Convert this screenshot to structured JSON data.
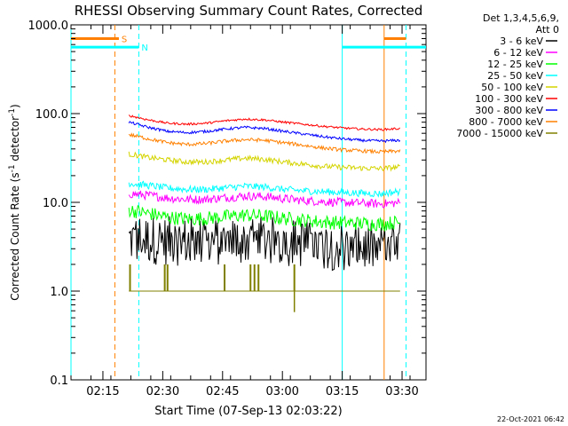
{
  "chart_data": {
    "type": "line",
    "title": "RHESSI Observing Summary Count Rates, Corrected",
    "xlabel": "Start Time (07-Sep-13 02:03:22)",
    "ylabel_main": "Corrected Count Rate (s",
    "ylabel_sup1": "-1",
    "ylabel_mid": " detector",
    "ylabel_sup2": "-1",
    "ylabel_end": ")",
    "yscale": "log",
    "ylim": [
      0.1,
      1000
    ],
    "y_ticks": [
      {
        "value": 1000,
        "label": "1000.0"
      },
      {
        "value": 100,
        "label": "100.0"
      },
      {
        "value": 10,
        "label": "10.0"
      },
      {
        "value": 1,
        "label": "1.0"
      },
      {
        "value": 0.1,
        "label": "0.1"
      }
    ],
    "xlim_min": [
      7,
      96
    ],
    "x_ticks": [
      {
        "min": 15,
        "label": "02:15"
      },
      {
        "min": 30,
        "label": "02:30"
      },
      {
        "min": 45,
        "label": "02:45"
      },
      {
        "min": 60,
        "label": "03:00"
      },
      {
        "min": 75,
        "label": "03:15"
      },
      {
        "min": 90,
        "label": "03:30"
      }
    ],
    "data_start_min": 21.5,
    "data_end_min": 89.5,
    "legend_header": [
      "Det 1,3,4,5,6,9,",
      "Att 0"
    ],
    "series": [
      {
        "name": "3 - 6 keV",
        "color": "#000000",
        "profile": [
          3.8,
          3.8,
          3.7,
          3.6,
          3.6,
          3.6,
          3.7,
          3.7,
          3.6,
          3.5,
          3.3,
          3.2,
          3.1,
          3.1,
          3.2
        ],
        "noise": 0.28,
        "spike": 0.25
      },
      {
        "name": "6 - 12 keV",
        "color": "#ff00ff",
        "profile": [
          12.5,
          12.0,
          11.2,
          10.8,
          10.8,
          11.3,
          11.8,
          11.6,
          11.0,
          10.5,
          10.2,
          10.0,
          9.8,
          9.6,
          9.9
        ],
        "noise": 0.05,
        "spike": 0
      },
      {
        "name": "12 - 25 keV",
        "color": "#00ff00",
        "profile": [
          8.2,
          7.5,
          6.8,
          6.5,
          6.6,
          6.9,
          7.2,
          7.0,
          6.6,
          6.3,
          6.0,
          5.9,
          5.8,
          5.7,
          6.0
        ],
        "noise": 0.08,
        "spike": 0
      },
      {
        "name": "25 - 50 keV",
        "color": "#00ffff",
        "profile": [
          16.5,
          15.5,
          14.5,
          14.0,
          14.0,
          14.6,
          15.2,
          14.9,
          14.0,
          13.5,
          13.2,
          12.9,
          12.7,
          12.5,
          13.3
        ],
        "noise": 0.04,
        "spike": 0
      },
      {
        "name": "50 - 100 keV",
        "color": "#d4d400",
        "profile": [
          35,
          32,
          30,
          28.5,
          28.5,
          30,
          31.5,
          30.5,
          28.5,
          27,
          25.5,
          24.8,
          24.3,
          24,
          25
        ],
        "noise": 0.03,
        "spike": 0
      },
      {
        "name": "100 - 300 keV",
        "color": "#ff0000",
        "profile": [
          95,
          85,
          78,
          76,
          78,
          83,
          87,
          85,
          80,
          76,
          72,
          69,
          67,
          66,
          68
        ],
        "noise": 0.012,
        "spike": 0
      },
      {
        "name": "300 - 800 keV",
        "color": "#0000ff",
        "profile": [
          80,
          70,
          63,
          61,
          63,
          67,
          70,
          68,
          63,
          59,
          55,
          52,
          50,
          49,
          50
        ],
        "noise": 0.015,
        "spike": 0
      },
      {
        "name": "800 - 7000 keV",
        "color": "#ff8000",
        "profile": [
          58,
          52,
          47,
          45,
          46,
          49,
          51,
          50,
          47,
          44,
          41,
          39,
          38,
          37,
          38
        ],
        "noise": 0.02,
        "spike": 0
      },
      {
        "name": "7000 - 15000 keV",
        "color": "#808000",
        "profile": [
          1,
          1,
          1,
          1,
          1,
          1,
          1,
          1,
          1,
          1,
          1,
          1,
          1,
          1,
          1
        ],
        "noise": 0,
        "spike": 0
      }
    ],
    "event_lines": [
      {
        "min": 7,
        "style": "solid",
        "color": "#00ffff"
      },
      {
        "min": 18,
        "style": "dashed",
        "color": "#ff8000"
      },
      {
        "min": 24,
        "style": "dashed",
        "color": "#00ffff"
      },
      {
        "min": 75,
        "style": "solid",
        "color": "#00ffff"
      },
      {
        "min": 85.5,
        "style": "solid",
        "color": "#ff8000"
      },
      {
        "min": 91,
        "style": "dashed",
        "color": "#00ffff"
      }
    ],
    "flag_bars": [
      {
        "label": "S",
        "color": "#ff8000",
        "y": 700,
        "from": 7,
        "to": 19
      },
      {
        "label": "N",
        "color": "#00ffff",
        "y": 560,
        "from": 7,
        "to": 24
      },
      {
        "label": "",
        "color": "#ff8000",
        "y": 700,
        "from": 85.5,
        "to": 91
      },
      {
        "label": "",
        "color": "#00ffff",
        "y": 560,
        "from": 75,
        "to": 96
      }
    ],
    "timestamp": "22-Oct-2021 06:42"
  }
}
